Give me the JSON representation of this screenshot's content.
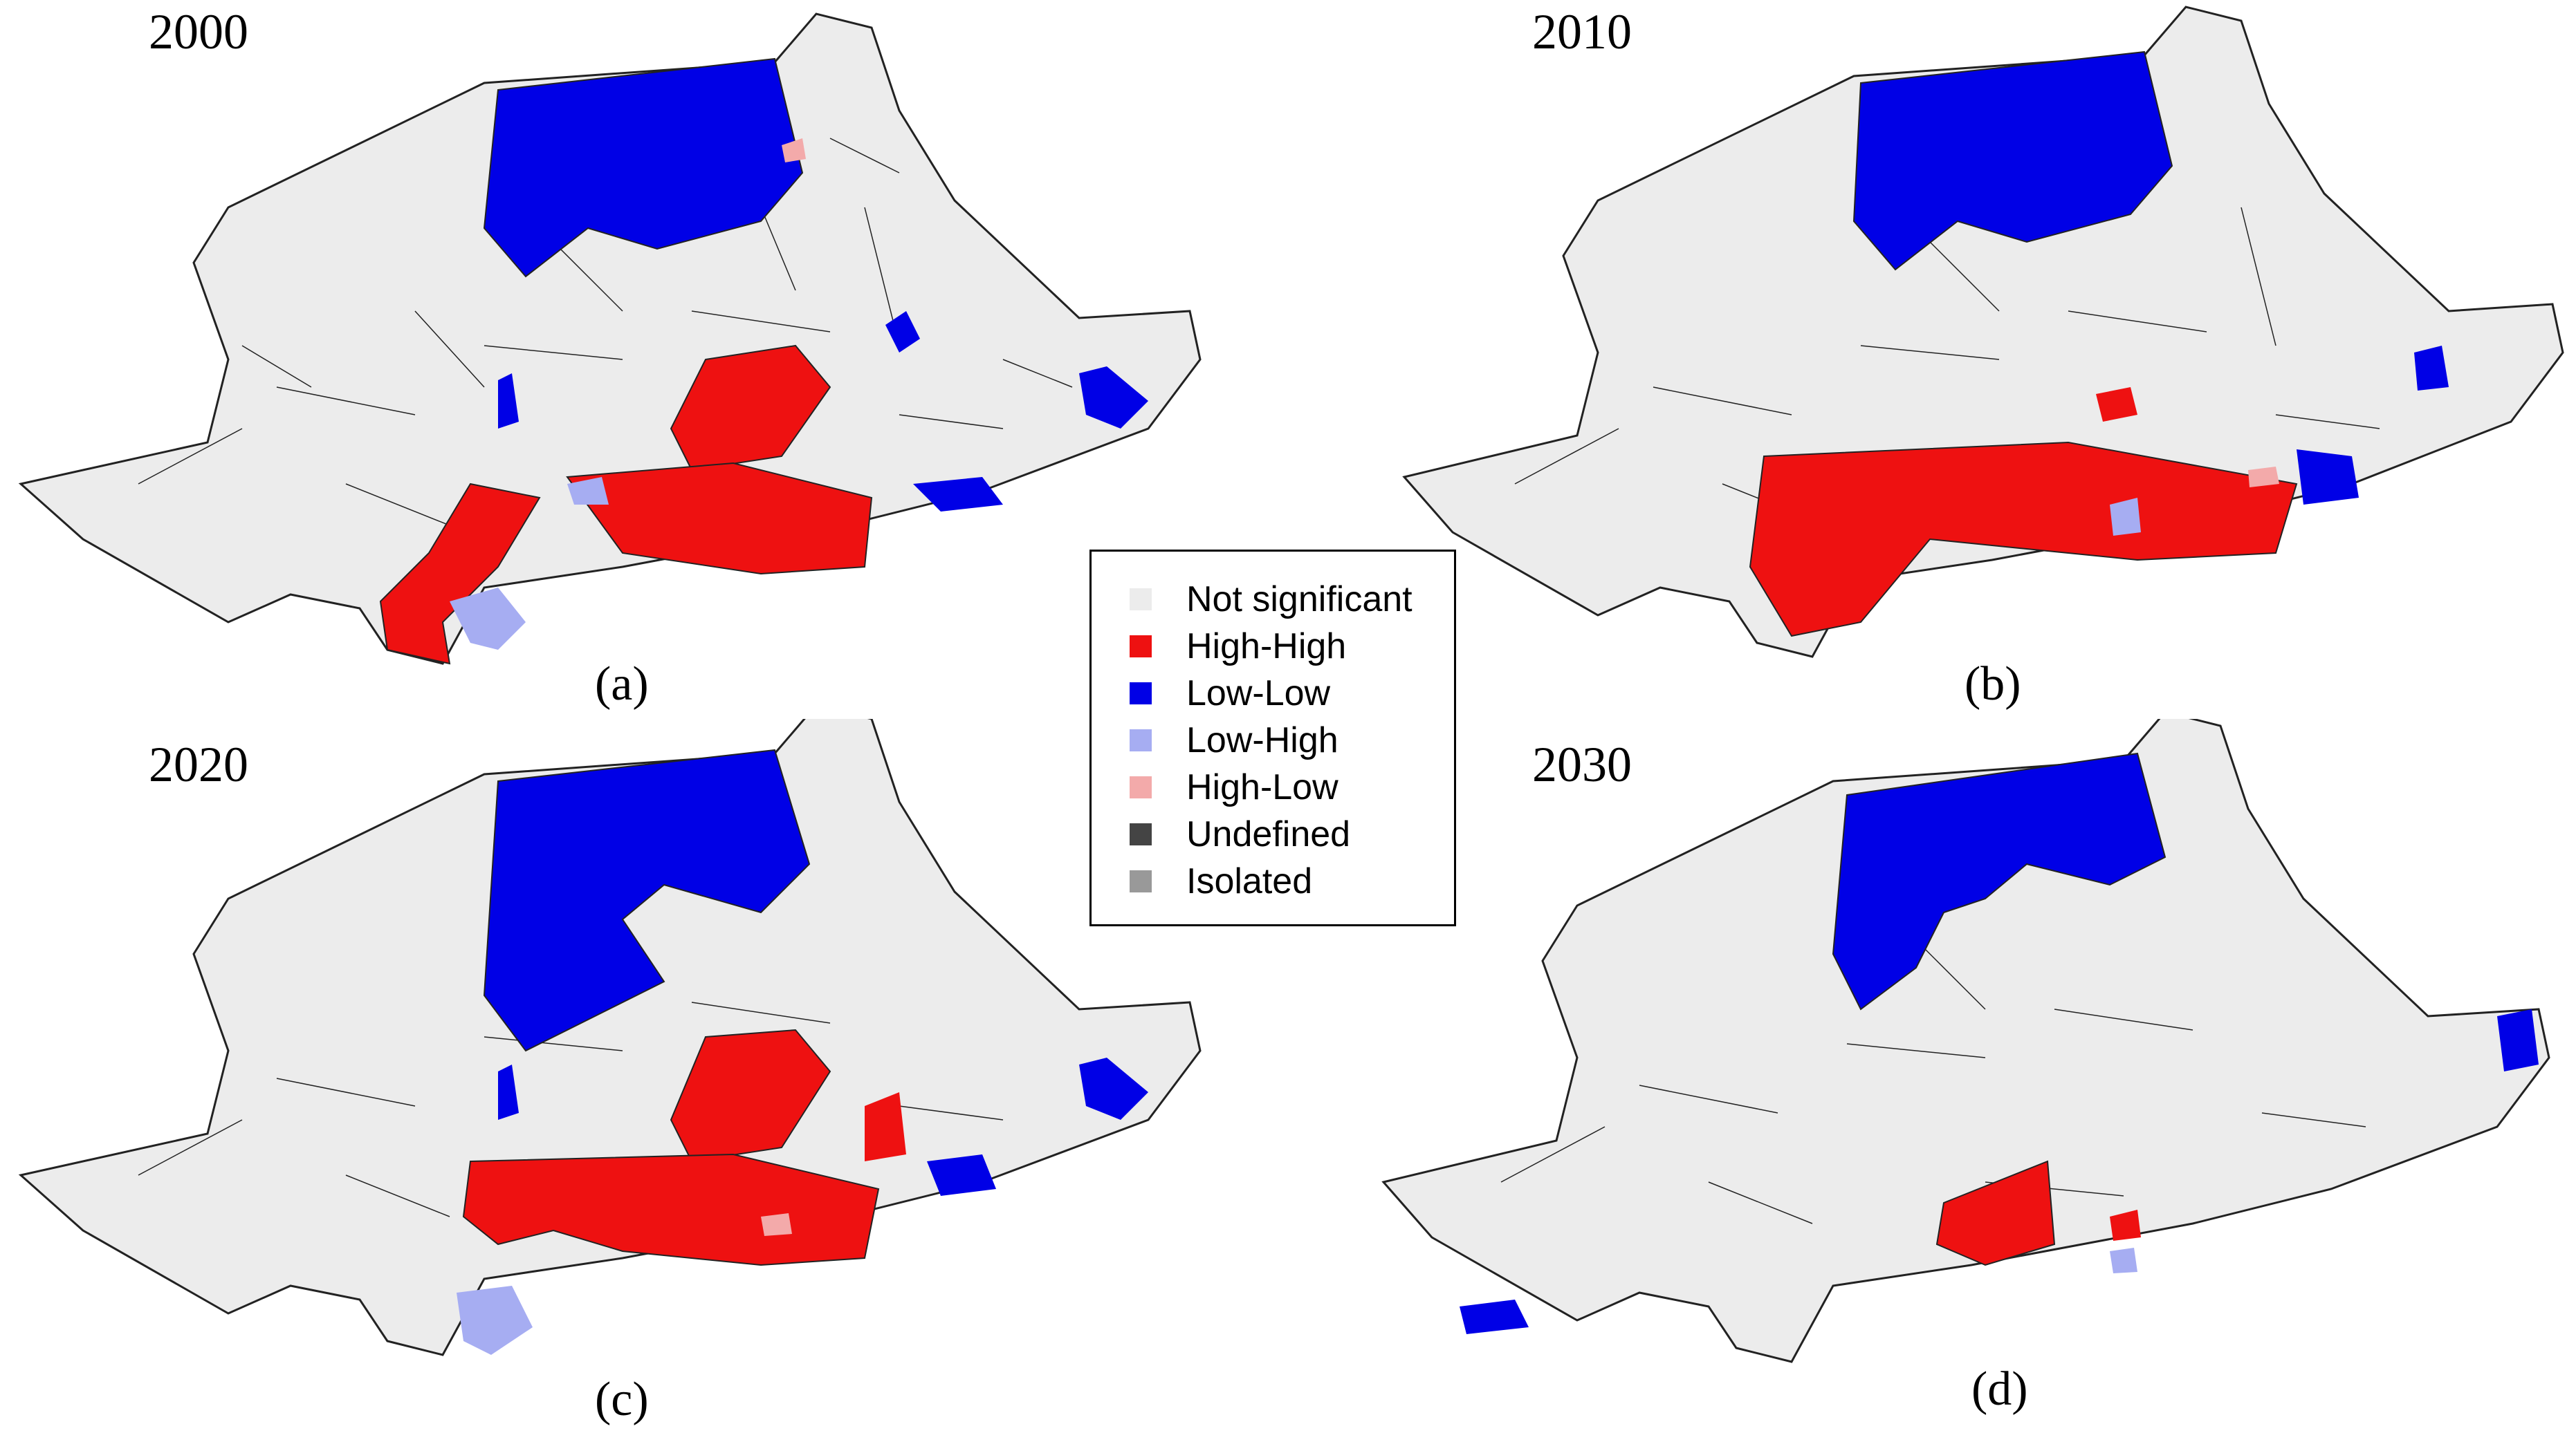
{
  "panels": [
    {
      "year": "2000",
      "caption": "(a)"
    },
    {
      "year": "2010",
      "caption": "(b)"
    },
    {
      "year": "2020",
      "caption": "(c)"
    },
    {
      "year": "2030",
      "caption": "(d)"
    }
  ],
  "legend": {
    "items": [
      {
        "label": "Not significant",
        "color": "#ececec"
      },
      {
        "label": "High-High",
        "color": "#ee1111"
      },
      {
        "label": "Low-Low",
        "color": "#0000e6"
      },
      {
        "label": "Low-High",
        "color": "#a6adf2"
      },
      {
        "label": "High-Low",
        "color": "#f3aaaa"
      },
      {
        "label": "Undefined",
        "color": "#444444"
      },
      {
        "label": "Isolated",
        "color": "#999999"
      }
    ]
  }
}
